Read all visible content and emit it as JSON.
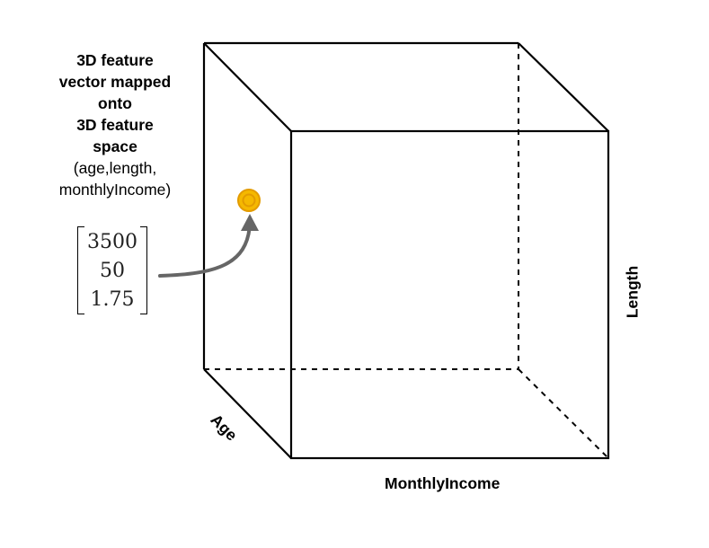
{
  "caption": {
    "line1": "3D feature",
    "line2": "vector mapped",
    "line3": "onto",
    "line4": "3D feature",
    "line5": "space",
    "line6": "(age,length,",
    "line7": "monthlyIncome)"
  },
  "vector": {
    "entries": [
      "3500",
      "50",
      "1.75"
    ]
  },
  "axes": {
    "x_label": "MonthlyIncome",
    "y_label": "Length",
    "z_label": "Age"
  },
  "colors": {
    "point_fill": "#F5B800",
    "point_ring": "#E39B00",
    "arrow": "#666666",
    "cube_edges": "#000000"
  }
}
